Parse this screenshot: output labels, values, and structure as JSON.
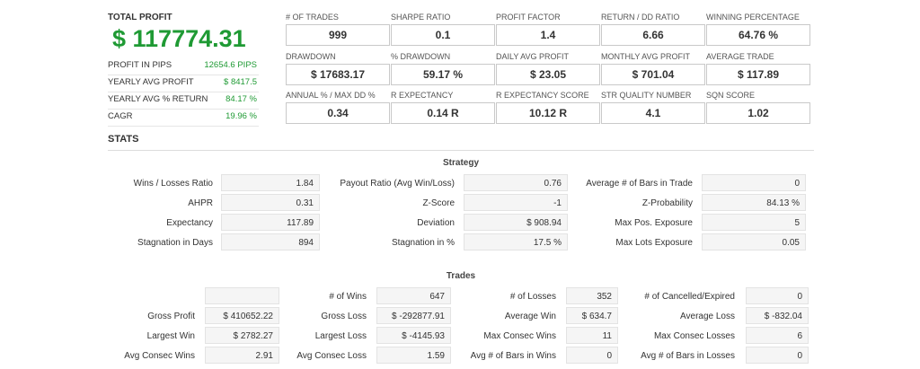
{
  "summary": {
    "title": "TOTAL PROFIT",
    "value": "$ 117774.31",
    "rows": [
      {
        "label": "PROFIT IN PIPS",
        "value": "12654.6 PIPS"
      },
      {
        "label": "YEARLY AVG PROFIT",
        "value": "$ 8417.5"
      },
      {
        "label": "YEARLY AVG % RETURN",
        "value": "84.17 %"
      },
      {
        "label": "CAGR",
        "value": "19.96 %"
      }
    ]
  },
  "metrics": [
    [
      {
        "label": "# OF TRADES",
        "value": "999"
      },
      {
        "label": "SHARPE RATIO",
        "value": "0.1"
      },
      {
        "label": "PROFIT FACTOR",
        "value": "1.4"
      },
      {
        "label": "RETURN / DD RATIO",
        "value": "6.66"
      },
      {
        "label": "WINNING PERCENTAGE",
        "value": "64.76 %"
      }
    ],
    [
      {
        "label": "DRAWDOWN",
        "value": "$ 17683.17"
      },
      {
        "label": "% DRAWDOWN",
        "value": "59.17 %"
      },
      {
        "label": "DAILY AVG PROFIT",
        "value": "$ 23.05"
      },
      {
        "label": "MONTHLY AVG PROFIT",
        "value": "$ 701.04"
      },
      {
        "label": "AVERAGE TRADE",
        "value": "$ 117.89"
      }
    ],
    [
      {
        "label": "ANNUAL % / MAX DD %",
        "value": "0.34"
      },
      {
        "label": "R EXPECTANCY",
        "value": "0.14 R"
      },
      {
        "label": "R EXPECTANCY SCORE",
        "value": "10.12 R"
      },
      {
        "label": "STR QUALITY NUMBER",
        "value": "4.1"
      },
      {
        "label": "SQN SCORE",
        "value": "1.02"
      }
    ]
  ],
  "stats_title": "STATS",
  "strategy": {
    "title": "Strategy",
    "rows": [
      [
        {
          "label": "Wins / Losses Ratio",
          "value": "1.84"
        },
        {
          "label": "Payout Ratio (Avg Win/Loss)",
          "value": "0.76"
        },
        {
          "label": "Average # of Bars in Trade",
          "value": "0"
        }
      ],
      [
        {
          "label": "AHPR",
          "value": "0.31"
        },
        {
          "label": "Z-Score",
          "value": "-1"
        },
        {
          "label": "Z-Probability",
          "value": "84.13 %"
        }
      ],
      [
        {
          "label": "Expectancy",
          "value": "117.89"
        },
        {
          "label": "Deviation",
          "value": "$ 908.94"
        },
        {
          "label": "Max Pos. Exposure",
          "value": "5"
        }
      ],
      [
        {
          "label": "Stagnation in Days",
          "value": "894"
        },
        {
          "label": "Stagnation in %",
          "value": "17.5 %"
        },
        {
          "label": "Max Lots Exposure",
          "value": "0.05"
        }
      ]
    ]
  },
  "trades": {
    "title": "Trades",
    "rows": [
      [
        {
          "label": "",
          "value": ""
        },
        {
          "label": "# of Wins",
          "value": "647"
        },
        {
          "label": "# of Losses",
          "value": "352"
        },
        {
          "label": "# of Cancelled/Expired",
          "value": "0"
        }
      ],
      [
        {
          "label": "Gross Profit",
          "value": "$ 410652.22"
        },
        {
          "label": "Gross Loss",
          "value": "$ -292877.91"
        },
        {
          "label": "Average Win",
          "value": "$ 634.7"
        },
        {
          "label": "Average Loss",
          "value": "$ -832.04"
        }
      ],
      [
        {
          "label": "Largest Win",
          "value": "$ 2782.27"
        },
        {
          "label": "Largest Loss",
          "value": "$ -4145.93"
        },
        {
          "label": "Max Consec Wins",
          "value": "11"
        },
        {
          "label": "Max Consec Losses",
          "value": "6"
        }
      ],
      [
        {
          "label": "Avg Consec Wins",
          "value": "2.91"
        },
        {
          "label": "Avg Consec Loss",
          "value": "1.59"
        },
        {
          "label": "Avg # of Bars in Wins",
          "value": "0"
        },
        {
          "label": "Avg # of Bars in Losses",
          "value": "0"
        }
      ]
    ]
  }
}
